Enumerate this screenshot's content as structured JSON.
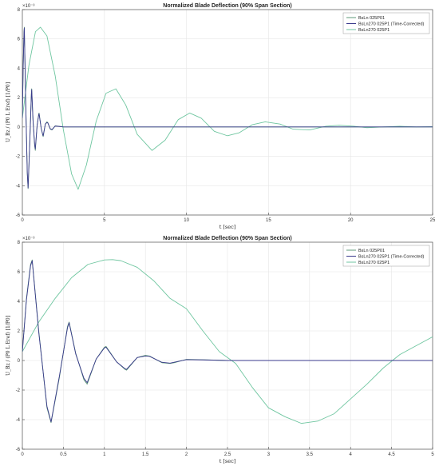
{
  "chart_data": [
    {
      "type": "line",
      "title": "Normalized Blade Deflection (90% Span Section)",
      "xlabel": "t [sec]",
      "ylabel": "U_Bz / (P0 L Eref) [1/P0]",
      "exponent_label": "×10⁻³",
      "xlim": [
        0,
        25
      ],
      "ylim": [
        -6,
        8
      ],
      "xticks": [
        0,
        5,
        10,
        15,
        20,
        25
      ],
      "xtick_labels": [
        "0",
        "5",
        "10",
        "15",
        "20",
        "25"
      ],
      "yticks": [
        -6,
        -4,
        -2,
        0,
        2,
        4,
        6,
        8
      ],
      "ytick_labels": [
        "-6",
        "-4",
        "-2",
        "0",
        "2",
        "4",
        "6",
        "8"
      ],
      "grid": true,
      "legend_position": "top-right",
      "series": [
        {
          "name": "BsLn  025P01",
          "color": "#5f9a7a",
          "x": [
            0,
            0.05,
            0.1,
            0.12,
            0.2,
            0.3,
            0.35,
            0.45,
            0.55,
            0.57,
            0.65,
            0.75,
            0.79,
            0.9,
            1.0,
            1.02,
            1.15,
            1.25,
            1.27,
            1.4,
            1.5,
            1.55,
            1.7,
            1.8,
            1.85,
            2.0,
            2.2,
            2.5,
            3.0,
            25
          ],
          "y": [
            0.6,
            4.2,
            6.5,
            6.8,
            2.0,
            -3.2,
            -4.2,
            -1.2,
            2.3,
            2.6,
            0.5,
            -1.3,
            -1.6,
            0.1,
            0.9,
            0.95,
            -0.1,
            -0.6,
            -0.65,
            0.2,
            0.35,
            0.3,
            -0.15,
            -0.2,
            -0.15,
            0.08,
            0.05,
            0.0,
            0.0,
            0.0
          ]
        },
        {
          "name": "BsLn270  025P1 (Time-Corrected)",
          "color": "#3a3a8c",
          "x": [
            0,
            0.05,
            0.1,
            0.12,
            0.2,
            0.3,
            0.35,
            0.45,
            0.55,
            0.57,
            0.65,
            0.75,
            0.79,
            0.9,
            1.0,
            1.02,
            1.15,
            1.25,
            1.27,
            1.4,
            1.5,
            1.55,
            1.7,
            1.8,
            1.85,
            2.0,
            2.2,
            2.5,
            3.0,
            25
          ],
          "y": [
            0.6,
            4.1,
            6.4,
            6.75,
            1.9,
            -3.1,
            -4.15,
            -1.1,
            2.2,
            2.55,
            0.45,
            -1.2,
            -1.5,
            0.1,
            0.85,
            0.9,
            -0.1,
            -0.55,
            -0.6,
            0.2,
            0.3,
            0.28,
            -0.12,
            -0.18,
            -0.12,
            0.06,
            0.04,
            0.0,
            0.0,
            0.0
          ]
        },
        {
          "name": "BsLn270  025P1",
          "color": "#6fc6a0",
          "x": [
            0,
            0.4,
            0.8,
            1.1,
            1.5,
            2.0,
            2.5,
            3.0,
            3.4,
            3.9,
            4.5,
            5.1,
            5.7,
            6.3,
            7.0,
            7.9,
            8.7,
            9.5,
            10.2,
            10.9,
            11.7,
            12.5,
            13.2,
            14.0,
            14.8,
            15.7,
            16.5,
            17.5,
            18.5,
            19.3,
            20.2,
            21.0,
            22.0,
            23.0,
            24.0,
            25.0
          ],
          "y": [
            0.6,
            4.2,
            6.5,
            6.8,
            6.2,
            3.5,
            -0.2,
            -3.2,
            -4.25,
            -2.6,
            0.4,
            2.3,
            2.6,
            1.5,
            -0.5,
            -1.6,
            -0.9,
            0.5,
            0.95,
            0.6,
            -0.3,
            -0.6,
            -0.4,
            0.15,
            0.35,
            0.2,
            -0.15,
            -0.2,
            0.05,
            0.12,
            0.05,
            -0.05,
            0.0,
            0.05,
            0.0,
            0.02
          ]
        }
      ]
    },
    {
      "type": "line",
      "title": "Normalized Blade Deflection (90% Span Section)",
      "xlabel": "t [sec]",
      "ylabel": "U_Bz / (P0 L Eref) [1/P0]",
      "exponent_label": "×10⁻³",
      "xlim": [
        0,
        5
      ],
      "ylim": [
        -6,
        8
      ],
      "xticks": [
        0,
        0.5,
        1,
        1.5,
        2,
        2.5,
        3,
        3.5,
        4,
        4.5,
        5
      ],
      "xtick_labels": [
        "0",
        "0.5",
        "1",
        "1.5",
        "2",
        "2.5",
        "3",
        "3.5",
        "4",
        "4.5",
        "5"
      ],
      "yticks": [
        -6,
        -4,
        -2,
        0,
        2,
        4,
        6,
        8
      ],
      "ytick_labels": [
        "-6",
        "-4",
        "-2",
        "0",
        "2",
        "4",
        "6",
        "8"
      ],
      "grid": true,
      "legend_position": "top-right",
      "series": [
        {
          "name": "BsLn  025P01",
          "color": "#5f9a7a",
          "x": [
            0,
            0.05,
            0.1,
            0.12,
            0.2,
            0.3,
            0.35,
            0.45,
            0.55,
            0.57,
            0.65,
            0.75,
            0.79,
            0.9,
            1.0,
            1.02,
            1.15,
            1.25,
            1.27,
            1.4,
            1.5,
            1.55,
            1.7,
            1.8,
            1.85,
            2.0,
            2.2,
            2.5,
            3.0,
            5.0
          ],
          "y": [
            0.6,
            4.2,
            6.5,
            6.8,
            2.0,
            -3.2,
            -4.2,
            -1.2,
            2.3,
            2.6,
            0.5,
            -1.3,
            -1.6,
            0.1,
            0.9,
            0.95,
            -0.1,
            -0.6,
            -0.65,
            0.2,
            0.35,
            0.3,
            -0.15,
            -0.2,
            -0.15,
            0.08,
            0.05,
            0.0,
            0.0,
            0.0
          ]
        },
        {
          "name": "BsLn270  025P1 (Time-Corrected)",
          "color": "#3a3a8c",
          "x": [
            0,
            0.05,
            0.1,
            0.12,
            0.2,
            0.3,
            0.35,
            0.45,
            0.55,
            0.57,
            0.65,
            0.75,
            0.79,
            0.9,
            1.0,
            1.02,
            1.15,
            1.25,
            1.27,
            1.4,
            1.5,
            1.55,
            1.7,
            1.8,
            1.85,
            2.0,
            2.2,
            2.5,
            3.0,
            5.0
          ],
          "y": [
            0.6,
            4.1,
            6.4,
            6.75,
            1.9,
            -3.1,
            -4.15,
            -1.1,
            2.2,
            2.55,
            0.45,
            -1.2,
            -1.5,
            0.1,
            0.85,
            0.9,
            -0.1,
            -0.55,
            -0.6,
            0.2,
            0.3,
            0.28,
            -0.12,
            -0.18,
            -0.12,
            0.06,
            0.04,
            0.0,
            0.0,
            0.0
          ]
        },
        {
          "name": "BsLn270  025P1",
          "color": "#6fc6a0",
          "x": [
            0,
            0.2,
            0.4,
            0.6,
            0.8,
            1.0,
            1.1,
            1.2,
            1.4,
            1.6,
            1.8,
            2.0,
            2.2,
            2.4,
            2.6,
            2.8,
            3.0,
            3.2,
            3.4,
            3.6,
            3.8,
            4.0,
            4.2,
            4.4,
            4.6,
            4.8,
            5.0
          ],
          "y": [
            0.6,
            2.6,
            4.2,
            5.6,
            6.5,
            6.8,
            6.82,
            6.75,
            6.3,
            5.4,
            4.2,
            3.5,
            2.0,
            0.6,
            -0.2,
            -1.8,
            -3.2,
            -3.8,
            -4.25,
            -4.1,
            -3.6,
            -2.6,
            -1.6,
            -0.5,
            0.4,
            1.0,
            1.6
          ]
        }
      ]
    }
  ]
}
